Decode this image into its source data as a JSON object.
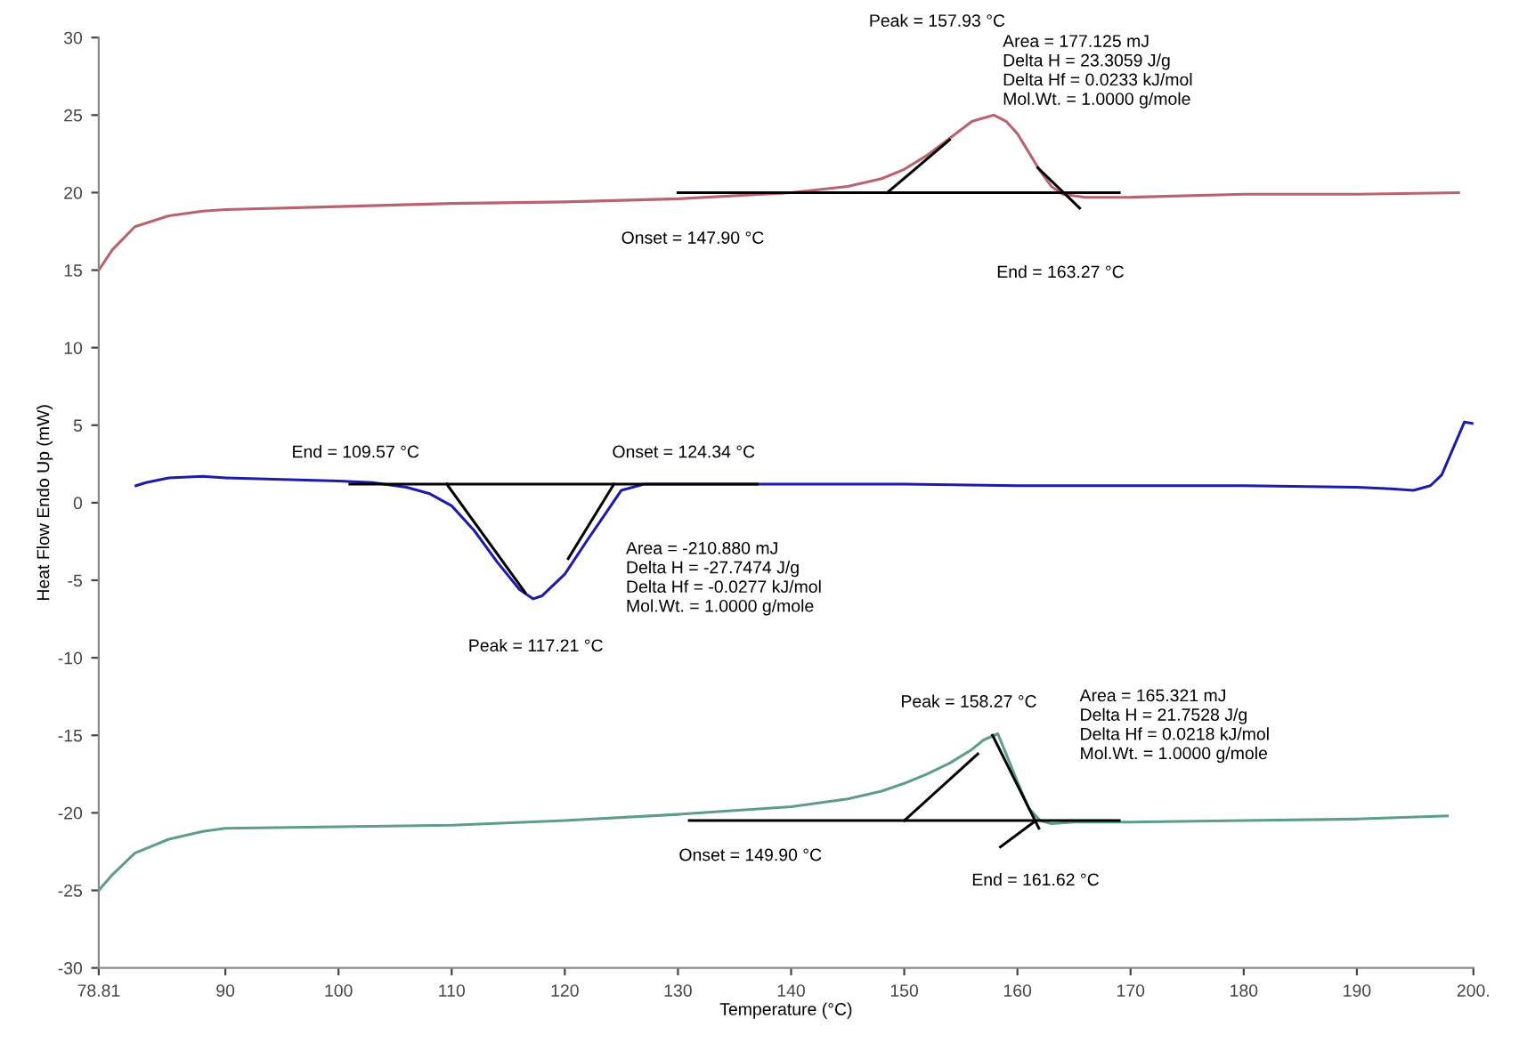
{
  "chart_data": {
    "type": "line",
    "xlabel": "Temperature (°C)",
    "ylabel": "Heat Flow Endo Up (mW)",
    "xlim": [
      78.81,
      200.3
    ],
    "ylim": [
      -30,
      30
    ],
    "xticks": [
      78.81,
      90,
      100,
      110,
      120,
      130,
      140,
      150,
      160,
      170,
      180,
      190,
      {
        "value": 200.3,
        "label": "200."
      }
    ],
    "yticks": [
      -30,
      -25,
      -20,
      -15,
      -10,
      -5,
      0,
      5,
      10,
      15,
      20,
      25,
      30
    ],
    "grid": false,
    "marker": "none",
    "line_style": "solid",
    "series": [
      {
        "color": "#b8646e",
        "x": [
          78.81,
          80,
          82,
          85,
          88,
          90,
          100,
          110,
          120,
          130,
          140,
          145,
          148,
          150,
          152,
          154,
          156,
          157.93,
          159,
          160,
          161,
          162,
          163,
          164,
          166,
          170,
          180,
          190,
          199
        ],
        "values": [
          15,
          16.3,
          17.8,
          18.5,
          18.8,
          18.9,
          19.1,
          19.3,
          19.4,
          19.6,
          20,
          20.4,
          20.9,
          21.5,
          22.4,
          23.5,
          24.6,
          25,
          24.6,
          23.8,
          22.6,
          21.4,
          20.4,
          19.9,
          19.7,
          19.7,
          19.9,
          19.9,
          20
        ]
      },
      {
        "color": "#1c1ca8",
        "x": [
          82.1,
          83,
          85,
          88,
          90,
          95,
          100,
          103,
          106,
          108,
          110,
          112,
          114,
          116,
          117.21,
          118,
          120,
          122,
          123.5,
          125,
          127,
          130,
          140,
          150,
          160,
          170,
          180,
          190,
          193,
          195,
          196.5,
          197.5,
          198.5,
          199.5,
          200.3
        ],
        "values": [
          1.1,
          1.3,
          1.6,
          1.7,
          1.6,
          1.5,
          1.4,
          1.3,
          1.0,
          0.6,
          -0.2,
          -1.8,
          -3.8,
          -5.6,
          -6.2,
          -6.0,
          -4.6,
          -2.4,
          -0.8,
          0.8,
          1.2,
          1.2,
          1.2,
          1.2,
          1.1,
          1.1,
          1.1,
          1.0,
          0.9,
          0.8,
          1.1,
          1.8,
          3.5,
          5.2,
          5.1
        ]
      },
      {
        "color": "#5e9e86",
        "x": [
          78.81,
          80,
          82,
          85,
          88,
          90,
          100,
          110,
          120,
          130,
          140,
          145,
          148,
          150,
          152,
          154,
          156,
          157,
          158.27,
          159,
          160,
          161,
          162,
          163,
          165,
          170,
          180,
          190,
          198
        ],
        "values": [
          -25,
          -24,
          -22.6,
          -21.7,
          -21.2,
          -21,
          -20.9,
          -20.8,
          -20.5,
          -20.1,
          -19.6,
          -19.1,
          -18.6,
          -18.1,
          -17.5,
          -16.8,
          -15.9,
          -15.3,
          -14.9,
          -16.2,
          -18,
          -19.7,
          -20.5,
          -20.7,
          -20.6,
          -20.6,
          -20.5,
          -20.4,
          -20.2
        ]
      },
      {
        "color": "#000000",
        "x": [
          130,
          169
        ],
        "values": [
          20,
          20
        ]
      },
      {
        "color": "#000000",
        "x": [
          148.5,
          154
        ],
        "values": [
          20,
          23.4
        ]
      },
      {
        "color": "#000000",
        "x": [
          161.8,
          165.5
        ],
        "values": [
          21.6,
          19
        ]
      },
      {
        "color": "#000000",
        "x": [
          101,
          137
        ],
        "values": [
          1.2,
          1.2
        ]
      },
      {
        "color": "#000000",
        "x": [
          109.57,
          116.5
        ],
        "values": [
          1.2,
          -5.8
        ]
      },
      {
        "color": "#000000",
        "x": [
          124.34,
          120.3
        ],
        "values": [
          1.2,
          -3.6
        ]
      },
      {
        "color": "#000000",
        "x": [
          131,
          169
        ],
        "values": [
          -20.5,
          -20.5
        ]
      },
      {
        "color": "#000000",
        "x": [
          150,
          156.5
        ],
        "values": [
          -20.5,
          -16.2
        ]
      },
      {
        "color": "#000000",
        "x": [
          157.8,
          161.9
        ],
        "values": [
          -15,
          -21
        ]
      },
      {
        "color": "#000000",
        "x": [
          158.5,
          161.62
        ],
        "values": [
          -22.2,
          -20.5
        ]
      }
    ],
    "annotations": [
      "Peak = 157.93 °C",
      "Area = 177.125 mJ\nDelta H = 23.3059 J/g\nDelta Hf = 0.0233 kJ/mol\nMol.Wt. = 1.0000 g/mole",
      "Onset = 147.90 °C",
      "End = 163.27 °C",
      "End = 109.57 °C",
      "Onset = 124.34 °C",
      "Peak = 117.21 °C",
      "Area = -210.880 mJ\nDelta H = -27.7474 J/g\nDelta Hf = -0.0277 kJ/mol\nMol.Wt. = 1.0000 g/mole",
      "Peak = 158.27 °C",
      "Area = 165.321 mJ\nDelta H = 21.7528 J/g\nDelta Hf = 0.0218 kJ/mol\nMol.Wt. = 1.0000 g/mole",
      "Onset = 149.90 °C",
      "End = 161.62 °C"
    ]
  }
}
